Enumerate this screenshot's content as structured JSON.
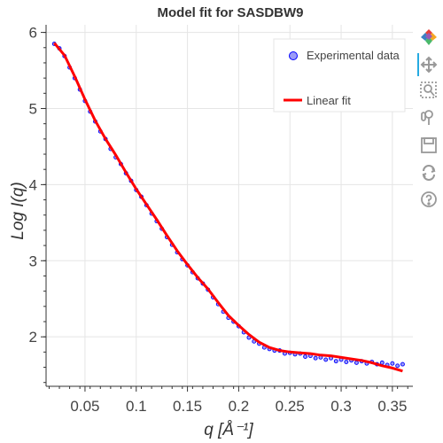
{
  "chart_data": {
    "type": "scatter",
    "title": "Model fit for SASDBW9",
    "xlabel": "q [Å⁻¹]",
    "ylabel": "Log I(q)",
    "xlim": [
      0.012,
      0.37
    ],
    "ylim": [
      1.35,
      6.1
    ],
    "xticks": [
      {
        "value": 0.05,
        "label": "0.05"
      },
      {
        "value": 0.1,
        "label": "0.1"
      },
      {
        "value": 0.15,
        "label": "0.15"
      },
      {
        "value": 0.2,
        "label": "0.2"
      },
      {
        "value": 0.25,
        "label": "0.25"
      },
      {
        "value": 0.3,
        "label": "0.3"
      },
      {
        "value": 0.35,
        "label": "0.35"
      }
    ],
    "yticks": [
      {
        "value": 2,
        "label": "2"
      },
      {
        "value": 3,
        "label": "3"
      },
      {
        "value": 4,
        "label": "4"
      },
      {
        "value": 5,
        "label": "5"
      },
      {
        "value": 6,
        "label": "6"
      }
    ],
    "grid": true,
    "legend_position": "top-right",
    "series": [
      {
        "name": "Experimental data",
        "kind": "scatter",
        "color": "#0000ff",
        "fill": "#9b9bf7",
        "x": [
          0.02,
          0.025,
          0.03,
          0.035,
          0.04,
          0.045,
          0.05,
          0.055,
          0.06,
          0.065,
          0.07,
          0.075,
          0.08,
          0.085,
          0.09,
          0.095,
          0.1,
          0.105,
          0.11,
          0.115,
          0.12,
          0.125,
          0.13,
          0.135,
          0.14,
          0.145,
          0.15,
          0.155,
          0.16,
          0.165,
          0.17,
          0.175,
          0.18,
          0.185,
          0.19,
          0.195,
          0.2,
          0.205,
          0.21,
          0.215,
          0.22,
          0.225,
          0.23,
          0.235,
          0.24,
          0.245,
          0.25,
          0.255,
          0.26,
          0.265,
          0.27,
          0.275,
          0.28,
          0.285,
          0.29,
          0.295,
          0.3,
          0.305,
          0.31,
          0.315,
          0.32,
          0.325,
          0.33,
          0.335,
          0.34,
          0.345,
          0.35,
          0.355,
          0.36
        ],
        "y": [
          5.85,
          5.79,
          5.69,
          5.54,
          5.4,
          5.25,
          5.1,
          4.96,
          4.83,
          4.7,
          4.6,
          4.47,
          4.36,
          4.27,
          4.15,
          4.05,
          3.93,
          3.84,
          3.73,
          3.62,
          3.52,
          3.42,
          3.31,
          3.21,
          3.11,
          3.02,
          2.94,
          2.85,
          2.77,
          2.7,
          2.62,
          2.52,
          2.43,
          2.33,
          2.25,
          2.2,
          2.14,
          2.06,
          1.99,
          1.94,
          1.91,
          1.86,
          1.84,
          1.82,
          1.82,
          1.78,
          1.79,
          1.77,
          1.78,
          1.74,
          1.75,
          1.72,
          1.73,
          1.7,
          1.72,
          1.68,
          1.7,
          1.67,
          1.69,
          1.66,
          1.68,
          1.65,
          1.67,
          1.64,
          1.66,
          1.63,
          1.65,
          1.62,
          1.64
        ]
      },
      {
        "name": "Linear fit",
        "kind": "line",
        "color": "#ff0000",
        "x": [
          0.02,
          0.03,
          0.04,
          0.05,
          0.06,
          0.07,
          0.08,
          0.09,
          0.1,
          0.11,
          0.12,
          0.13,
          0.14,
          0.15,
          0.16,
          0.17,
          0.18,
          0.19,
          0.2,
          0.21,
          0.22,
          0.23,
          0.24,
          0.25,
          0.26,
          0.27,
          0.28,
          0.29,
          0.3,
          0.31,
          0.32,
          0.33,
          0.34,
          0.35,
          0.36
        ],
        "y": [
          5.86,
          5.7,
          5.42,
          5.12,
          4.84,
          4.6,
          4.39,
          4.16,
          3.94,
          3.74,
          3.54,
          3.33,
          3.13,
          2.95,
          2.78,
          2.63,
          2.45,
          2.28,
          2.15,
          2.03,
          1.93,
          1.86,
          1.82,
          1.8,
          1.79,
          1.78,
          1.76,
          1.75,
          1.73,
          1.71,
          1.69,
          1.66,
          1.62,
          1.59,
          1.55
        ]
      }
    ]
  },
  "toolbar": {
    "tools": [
      "bokeh-logo-icon",
      "pan-icon",
      "box-zoom-icon",
      "wheel-zoom-icon",
      "save-icon",
      "reset-icon",
      "help-icon"
    ],
    "accent": "#26aae1",
    "icon_color": "#999999"
  }
}
